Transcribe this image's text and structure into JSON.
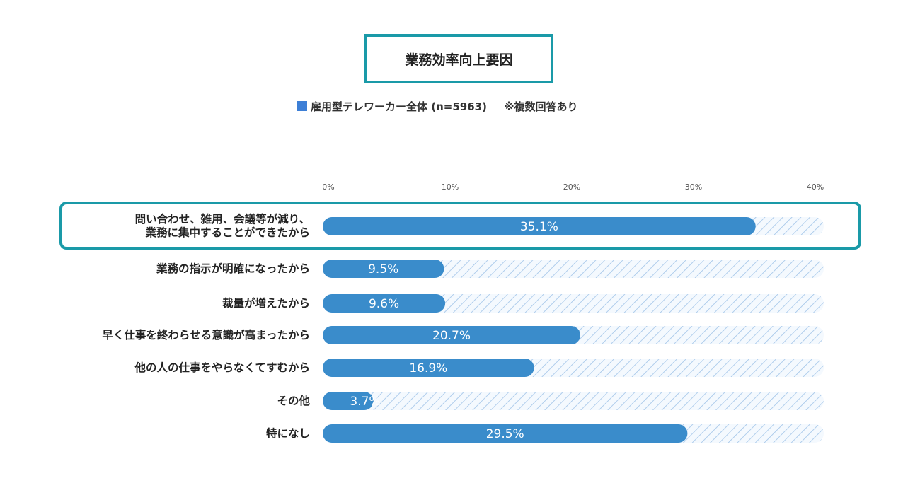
{
  "title": "業務効率向上要因",
  "legend": {
    "series_label": "雇用型テレワーカー全体 (n=5963)",
    "note": "※複数回答あり",
    "color": "#3d7fd6"
  },
  "chart_data": {
    "type": "bar",
    "orientation": "horizontal",
    "xlim": [
      0,
      40
    ],
    "ticks": [
      0,
      10,
      20,
      30,
      40
    ],
    "tick_labels": [
      "0%",
      "10%",
      "20%",
      "30%",
      "40%"
    ],
    "categories": [
      [
        "問い合わせ、雑用、会議等が減り、",
        "業務に集中することができたから"
      ],
      [
        "業務の指示が明確になったから"
      ],
      [
        "裁量が増えたから"
      ],
      [
        "早く仕事を終わらせる意識が高まったから"
      ],
      [
        "他の人の仕事をやらなくてすむから"
      ],
      [
        "その他"
      ],
      [
        "特になし"
      ]
    ],
    "values": [
      35.1,
      9.5,
      9.6,
      20.7,
      16.9,
      3.7,
      29.5
    ],
    "value_labels": [
      "35.1%",
      "9.5%",
      "9.6%",
      "20.7%",
      "16.9%",
      "3.7%",
      "29.5%"
    ],
    "highlighted_index": 0,
    "bar_color": "#3a8ccb",
    "track_hatch_color": "#9fc3e8",
    "highlight_color": "#1a9aa8"
  }
}
